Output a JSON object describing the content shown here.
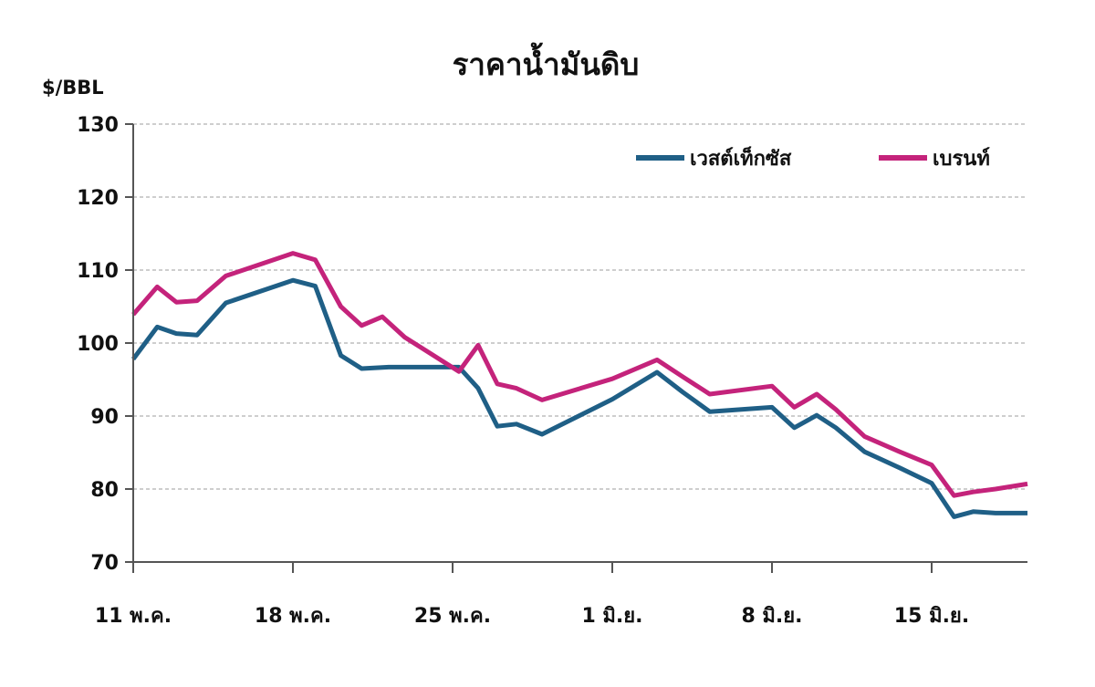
{
  "chart_data": {
    "type": "line",
    "title": "ราคาน้ำมันดิบ",
    "ylabel": "$/BBL",
    "ylim": [
      70,
      130
    ],
    "yticks": [
      70,
      80,
      90,
      100,
      110,
      120,
      130
    ],
    "xlim": [
      0,
      28
    ],
    "x_ticks": [
      {
        "x": 0,
        "label": "11 พ.ค."
      },
      {
        "x": 5,
        "label": "18 พ.ค."
      },
      {
        "x": 10,
        "label": "25 พ.ค."
      },
      {
        "x": 15,
        "label": "1 มิ.ย."
      },
      {
        "x": 20,
        "label": "8 มิ.ย."
      },
      {
        "x": 25,
        "label": "15 มิ.ย."
      }
    ],
    "grid": true,
    "legend": "top-right",
    "series": [
      {
        "name": "เวสต์เท็กซัส",
        "color": "#1f5f86",
        "x": [
          0,
          0.75,
          1.35,
          2,
          2.9,
          5,
          5.7,
          6.5,
          7.15,
          8,
          9.5,
          10.2,
          10.8,
          11.4,
          12,
          12.8,
          15,
          16.4,
          17.2,
          18.05,
          20,
          20.7,
          21.4,
          22,
          22.9,
          24,
          25,
          25.7,
          26.3,
          27,
          28
        ],
        "values": [
          97.8,
          102.2,
          101.3,
          101.1,
          105.5,
          108.6,
          107.8,
          98.3,
          96.5,
          96.7,
          96.7,
          96.7,
          93.8,
          88.6,
          88.9,
          87.5,
          92.3,
          96.0,
          93.3,
          90.6,
          91.2,
          88.4,
          90.1,
          88.4,
          85.1,
          82.9,
          80.8,
          76.2,
          76.9,
          76.7,
          76.7
        ]
      },
      {
        "name": "เบรนท์",
        "color": "#c4237b",
        "x": [
          0,
          0.75,
          1.35,
          2,
          2.9,
          5,
          5.7,
          6.5,
          7.15,
          7.8,
          8.5,
          10.2,
          10.8,
          11.4,
          12,
          12.8,
          15,
          16.4,
          17.2,
          18.05,
          20,
          20.7,
          21.4,
          22,
          22.9,
          24,
          25,
          25.7,
          26.3,
          27,
          28
        ],
        "values": [
          103.9,
          107.7,
          105.6,
          105.8,
          109.2,
          112.3,
          111.4,
          105.0,
          102.4,
          103.6,
          100.8,
          96.1,
          99.7,
          94.4,
          93.8,
          92.2,
          95.1,
          97.7,
          95.4,
          93.0,
          94.1,
          91.2,
          93.0,
          90.9,
          87.2,
          85.1,
          83.3,
          79.1,
          79.6,
          80.0,
          80.7
        ]
      }
    ]
  }
}
